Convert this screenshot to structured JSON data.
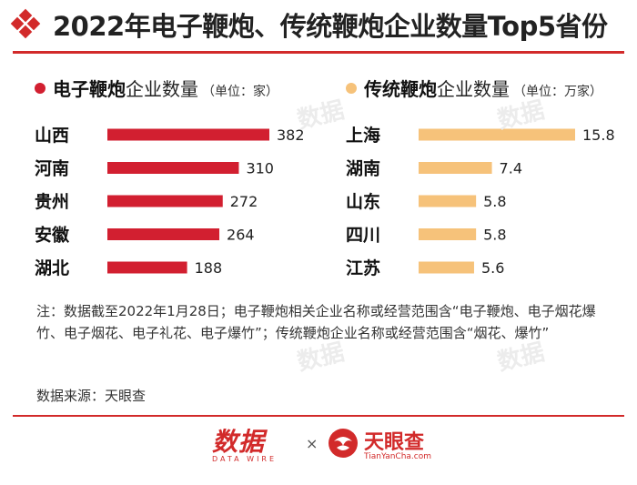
{
  "title": "2022年电子鞭炮、传统鞭炮企业数量Top5省份",
  "chart_data": [
    {
      "type": "bar",
      "orientation": "horizontal",
      "legend": {
        "strong": "电子鞭炮",
        "rest": "企业数量",
        "unit": "（单位：家）"
      },
      "categories": [
        "山西",
        "河南",
        "贵州",
        "安徽",
        "湖北"
      ],
      "values": [
        382,
        310,
        272,
        264,
        188
      ],
      "value_labels": [
        "382",
        "310",
        "272",
        "264",
        "188"
      ],
      "color": "#d21f30"
    },
    {
      "type": "bar",
      "orientation": "horizontal",
      "legend": {
        "strong": "传统鞭炮",
        "rest": "企业数量",
        "unit": "（单位：万家）"
      },
      "categories": [
        "上海",
        "湖南",
        "山东",
        "四川",
        "江苏"
      ],
      "values": [
        15.8,
        7.4,
        5.8,
        5.8,
        5.6
      ],
      "value_labels": [
        "15.8",
        "7.4",
        "5.8",
        "5.8",
        "5.6"
      ],
      "color": "#f6c27a"
    }
  ],
  "note": "注：数据截至2022年1月28日；电子鞭炮相关企业名称或经营范围含“电子鞭炮、电子烟花爆竹、电子烟花、电子礼花、电子爆竹”；传统鞭炮企业名称或经营范围含“烟花、爆竹”",
  "source": "数据来源：天眼查",
  "footer": {
    "datawire_main": "数据",
    "datawire_sub": "DATA WIRE",
    "times": "×",
    "tianyancha_name": "天眼查",
    "tianyancha_url": "TianYanCha.com"
  },
  "watermark_text": "数据",
  "icons": {
    "title_logo": "red-diamond-lattice-icon",
    "tianyancha": "tianyancha-logo-icon"
  }
}
